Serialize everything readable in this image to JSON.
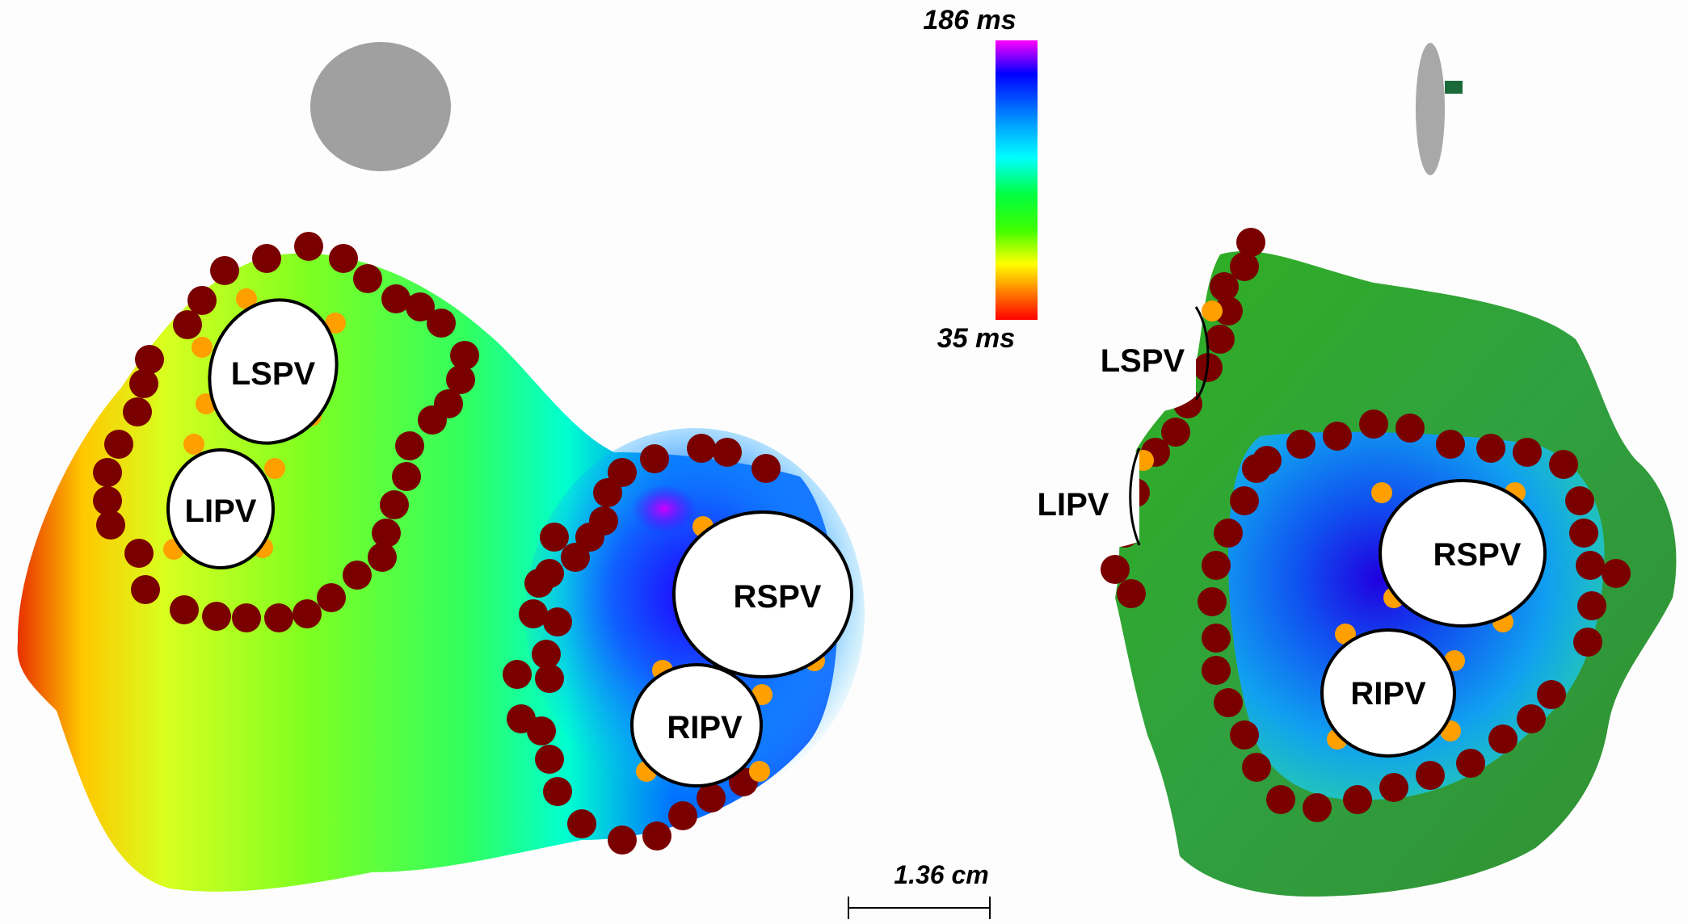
{
  "colorbar": {
    "max_label": "186 ms",
    "min_label": "35 ms",
    "stops": [
      "#ff00ff",
      "#0000ff",
      "#00a0ff",
      "#00ffff",
      "#00ff40",
      "#40ff00",
      "#ffff00",
      "#ff8000",
      "#ff0000"
    ]
  },
  "scale_bar": {
    "label": "1.36 cm"
  },
  "left_view": {
    "veins": {
      "lspv": "LSPV",
      "lipv": "LIPV",
      "rspv": "RSPV",
      "ripv": "RIPV"
    }
  },
  "right_view": {
    "veins": {
      "lspv": "LSPV",
      "lipv": "LIPV",
      "rspv": "RSPV",
      "ripv": "RIPV"
    }
  },
  "colors": {
    "ablation_lesion": "#7a0000",
    "vein_marker": "#ff9f00",
    "orientation_marker": "#a0a0a0"
  }
}
